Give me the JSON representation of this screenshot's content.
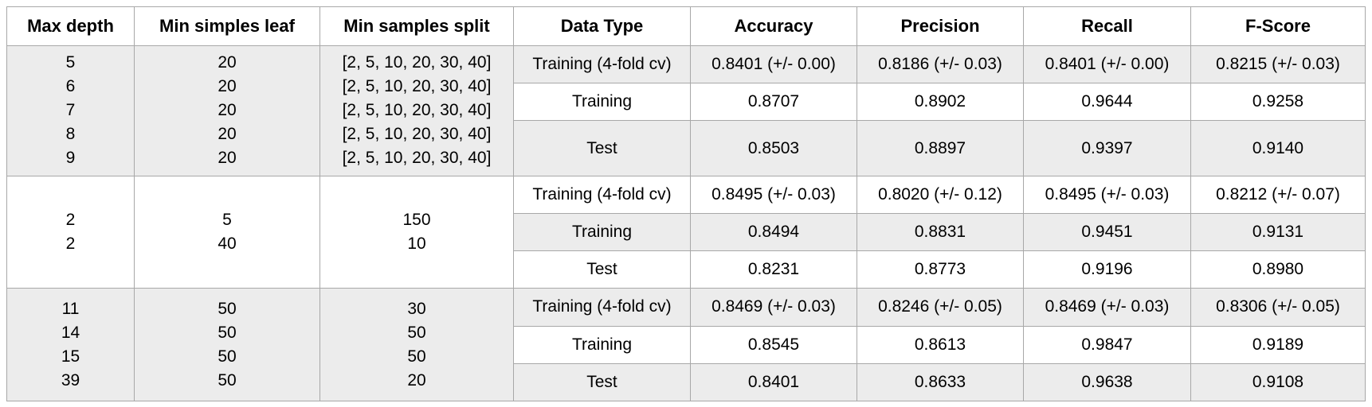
{
  "headers": [
    "Max depth",
    "Min simples leaf",
    "Min samples split",
    "Data Type",
    "Accuracy",
    "Precision",
    "Recall",
    "F-Score"
  ],
  "groups": [
    {
      "max_depth": [
        "5",
        "6",
        "7",
        "8",
        "9"
      ],
      "min_leaf": [
        "20",
        "20",
        "20",
        "20",
        "20"
      ],
      "min_split": [
        "[2, 5, 10, 20, 30, 40]",
        "[2, 5, 10, 20, 30, 40]",
        "[2, 5, 10, 20, 30, 40]",
        "[2, 5, 10, 20, 30, 40]",
        "[2, 5, 10, 20, 30, 40]"
      ],
      "rows": [
        [
          "Training (4-fold cv)",
          "0.8401 (+/- 0.00)",
          "0.8186 (+/- 0.03)",
          "0.8401 (+/- 0.00)",
          "0.8215 (+/- 0.03)"
        ],
        [
          "Training",
          "0.8707",
          "0.8902",
          "0.9644",
          "0.9258"
        ],
        [
          "Test",
          "0.8503",
          "0.8897",
          "0.9397",
          "0.9140"
        ]
      ]
    },
    {
      "max_depth": [
        "2",
        "2"
      ],
      "min_leaf": [
        "5",
        "40"
      ],
      "min_split": [
        "150",
        "10"
      ],
      "rows": [
        [
          "Training (4-fold cv)",
          "0.8495 (+/- 0.03)",
          "0.8020 (+/- 0.12)",
          "0.8495 (+/- 0.03)",
          "0.8212 (+/- 0.07)"
        ],
        [
          "Training",
          "0.8494",
          "0.8831",
          "0.9451",
          "0.9131"
        ],
        [
          "Test",
          "0.8231",
          "0.8773",
          "0.9196",
          "0.8980"
        ]
      ]
    },
    {
      "max_depth": [
        "11",
        "14",
        "15",
        "39"
      ],
      "min_leaf": [
        "50",
        "50",
        "50",
        "50"
      ],
      "min_split": [
        "30",
        "50",
        "50",
        "20"
      ],
      "rows": [
        [
          "Training (4-fold cv)",
          "0.8469 (+/- 0.03)",
          "0.8246 (+/- 0.05)",
          "0.8469 (+/- 0.03)",
          "0.8306 (+/- 0.05)"
        ],
        [
          "Training",
          "0.8545",
          "0.8613",
          "0.9847",
          "0.9189"
        ],
        [
          "Test",
          "0.8401",
          "0.8633",
          "0.9638",
          "0.9108"
        ]
      ]
    }
  ],
  "colors": {
    "shade": "#ececec",
    "border": "#a8a8a8"
  }
}
